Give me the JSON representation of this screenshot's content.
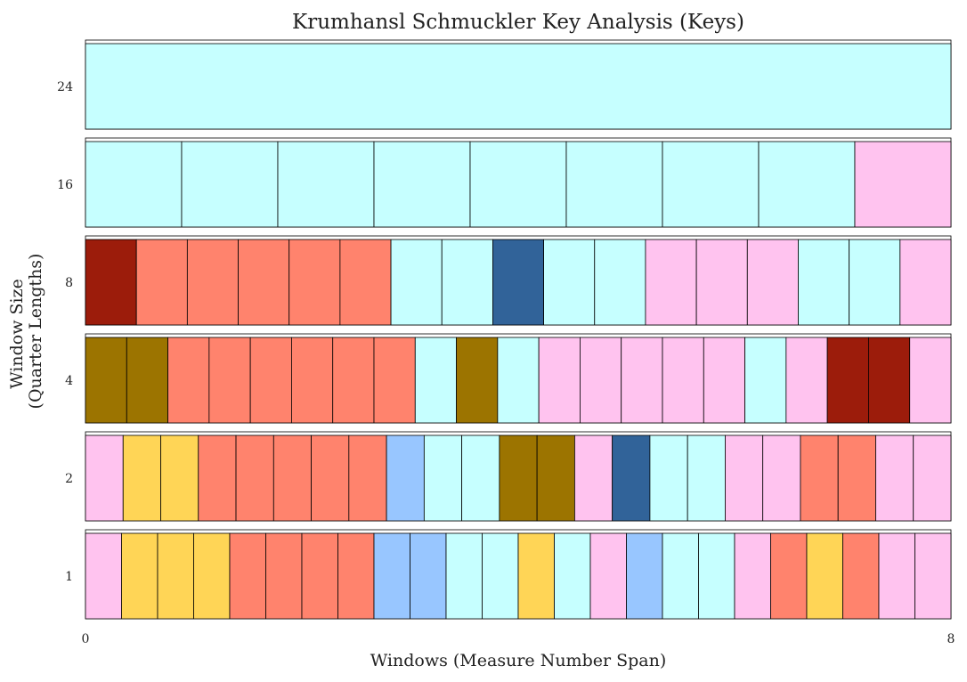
{
  "chart_data": {
    "type": "heatmap",
    "title": "Krumhansl Schmuckler Key Analysis (Keys)",
    "xlabel": "Windows (Measure Number Span)",
    "ylabel": [
      "Window Size",
      "(Quarter Lengths)"
    ],
    "xlim": [
      0,
      8
    ],
    "x_ticks": [
      "0",
      "8"
    ],
    "colors": {
      "cyan": "#c6ffff",
      "pink": "#ffc3ef",
      "salmon": "#ff836d",
      "darkred": "#9c1c0b",
      "blue": "#316399",
      "olive": "#9c7400",
      "yellow": "#ffd556",
      "lightblue": "#98c6ff"
    },
    "rows": [
      {
        "label": "24",
        "cells": [
          "cyan"
        ]
      },
      {
        "label": "16",
        "cells": [
          "cyan",
          "cyan",
          "cyan",
          "cyan",
          "cyan",
          "cyan",
          "cyan",
          "cyan",
          "pink"
        ]
      },
      {
        "label": "8",
        "cells": [
          "darkred",
          "salmon",
          "salmon",
          "salmon",
          "salmon",
          "salmon",
          "cyan",
          "cyan",
          "blue",
          "cyan",
          "cyan",
          "pink",
          "pink",
          "pink",
          "cyan",
          "cyan",
          "pink"
        ]
      },
      {
        "label": "4",
        "cells": [
          "olive",
          "olive",
          "salmon",
          "salmon",
          "salmon",
          "salmon",
          "salmon",
          "salmon",
          "cyan",
          "olive",
          "cyan",
          "pink",
          "pink",
          "pink",
          "pink",
          "pink",
          "cyan",
          "pink",
          "darkred",
          "darkred",
          "pink"
        ]
      },
      {
        "label": "2",
        "cells": [
          "pink",
          "yellow",
          "yellow",
          "salmon",
          "salmon",
          "salmon",
          "salmon",
          "salmon",
          "lightblue",
          "cyan",
          "cyan",
          "olive",
          "olive",
          "pink",
          "blue",
          "cyan",
          "cyan",
          "pink",
          "pink",
          "salmon",
          "salmon",
          "pink",
          "pink"
        ]
      },
      {
        "label": "1",
        "cells": [
          "pink",
          "yellow",
          "yellow",
          "yellow",
          "salmon",
          "salmon",
          "salmon",
          "salmon",
          "lightblue",
          "lightblue",
          "cyan",
          "cyan",
          "yellow",
          "cyan",
          "pink",
          "lightblue",
          "cyan",
          "cyan",
          "pink",
          "salmon",
          "yellow",
          "salmon",
          "pink",
          "pink"
        ]
      }
    ]
  }
}
